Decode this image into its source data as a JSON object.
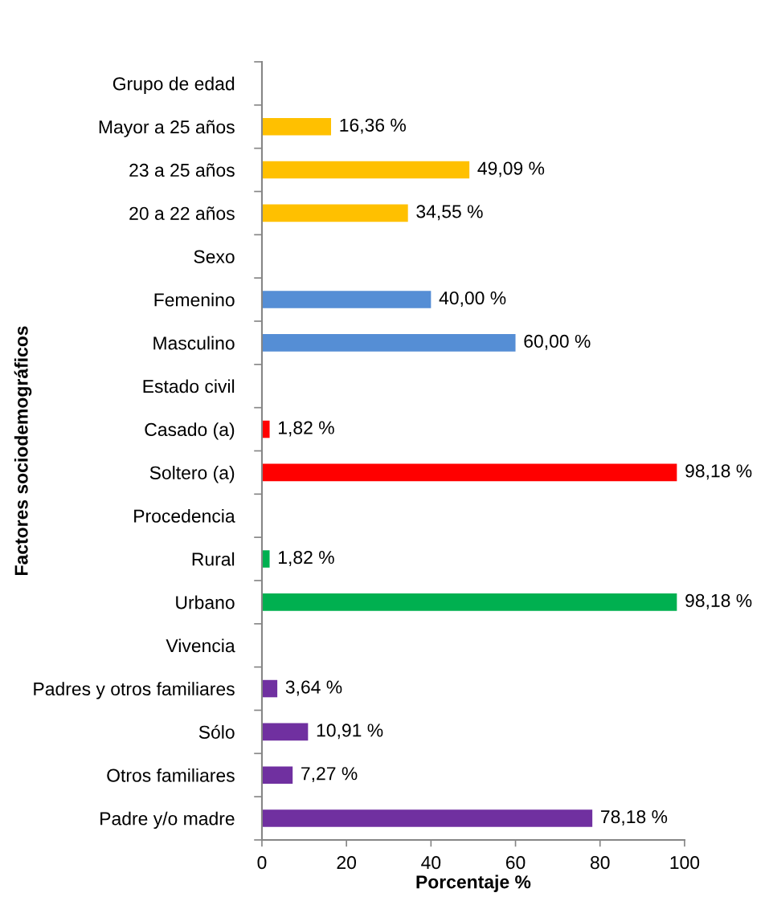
{
  "chart_data": {
    "type": "bar",
    "orientation": "horizontal",
    "xlabel": "Porcentaje %",
    "ylabel": "Factores sociodemográficos",
    "categories": [
      "Grupo de edad",
      "Mayor a 25 años",
      "23 a 25 años",
      "20 a 22 años",
      "Sexo",
      "Femenino",
      "Masculino",
      "Estado civil",
      "Casado (a)",
      "Soltero (a)",
      "Procedencia",
      "Rural",
      "Urbano",
      "Vivencia",
      "Padres y otros familiares",
      "Sólo",
      "Otros familiares",
      "Padre y/o madre"
    ],
    "values": [
      null,
      16.36,
      49.09,
      34.55,
      null,
      40.0,
      60.0,
      null,
      1.82,
      98.18,
      null,
      1.82,
      98.18,
      null,
      3.64,
      10.91,
      7.27,
      78.18
    ],
    "colors": [
      null,
      "#ffc000",
      "#ffc000",
      "#ffc000",
      null,
      "#558ed5",
      "#558ed5",
      null,
      "#ff0000",
      "#ff0000",
      null,
      "#00b050",
      "#00b050",
      null,
      "#7030a0",
      "#7030a0",
      "#7030a0",
      "#7030a0"
    ],
    "value_labels": [
      null,
      "16,36 %",
      "49,09 %",
      "34,55 %",
      null,
      "40,00 %",
      "60,00 %",
      null,
      "1,82 %",
      "98,18 %",
      null,
      "1,82 %",
      "98,18 %",
      null,
      "3,64 %",
      "10,91 %",
      "7,27 %",
      "78,18 %"
    ],
    "xlim": [
      0,
      100
    ],
    "xticks": [
      0,
      20,
      40,
      60,
      80,
      100
    ]
  }
}
